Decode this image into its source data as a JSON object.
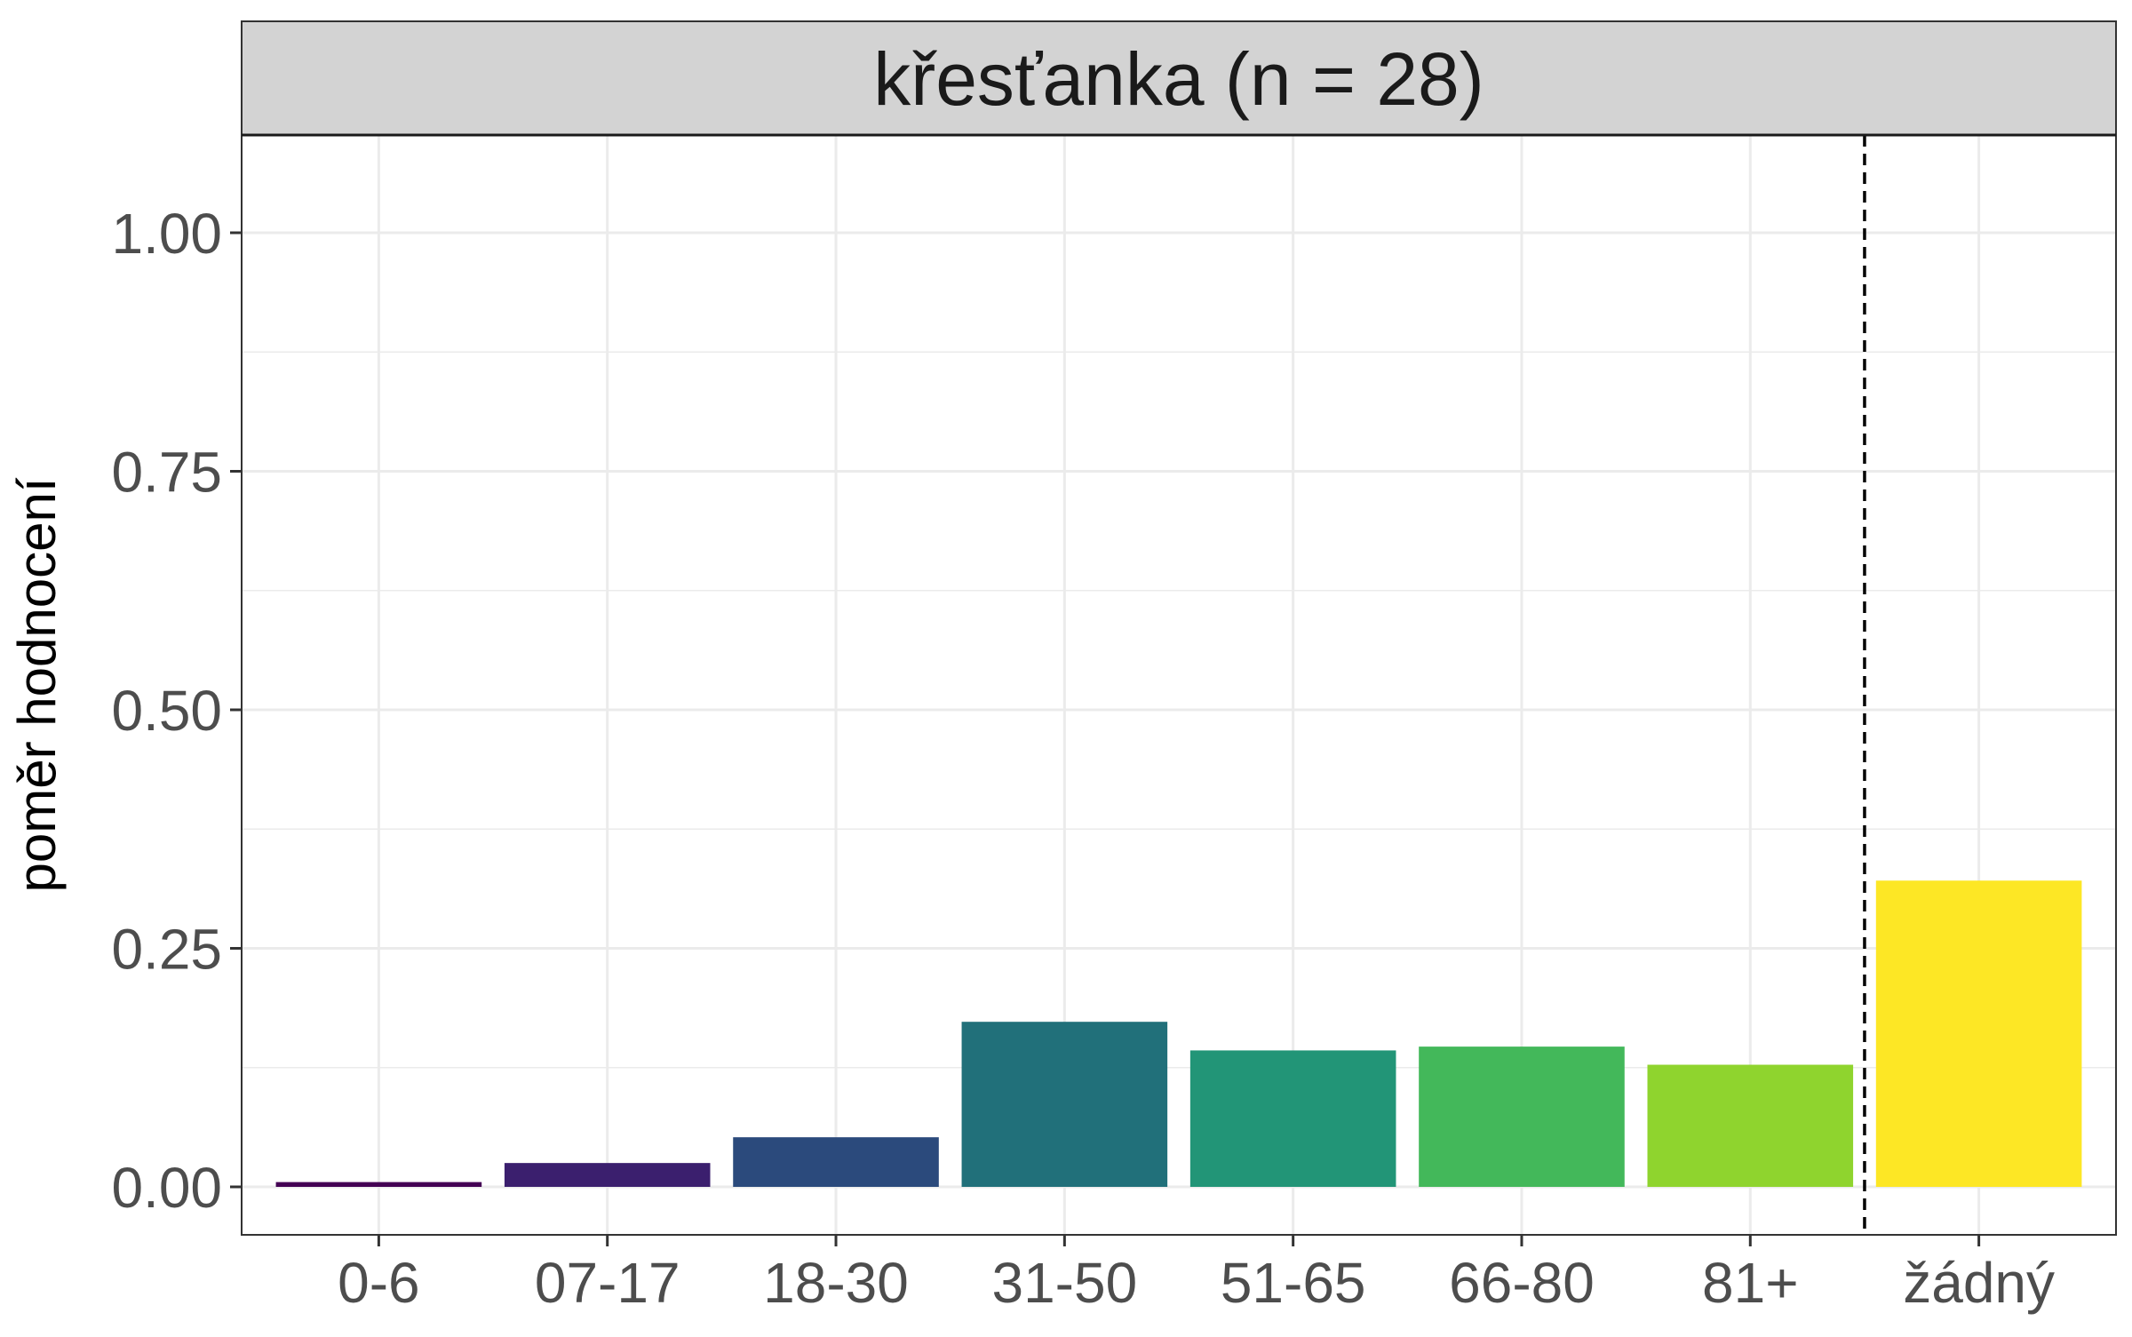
{
  "chart_data": {
    "type": "bar",
    "facet_title": "křesťanka (n = 28)",
    "ylabel": "poměr hodnocení",
    "xlabel": "",
    "categories": [
      "0-6",
      "07-17",
      "18-30",
      "31-50",
      "51-65",
      "66-80",
      "81+",
      "žádný"
    ],
    "values": [
      0.005,
      0.025,
      0.052,
      0.173,
      0.143,
      0.147,
      0.128,
      0.321
    ],
    "colors": [
      "#440154",
      "#3b1f6e",
      "#2b4a7c",
      "#21707a",
      "#229577",
      "#43b85a",
      "#8fd42e",
      "#fde725"
    ],
    "ylim": [
      -0.05,
      1.1
    ],
    "yticks": [
      0.0,
      0.25,
      0.5,
      0.75,
      1.0
    ],
    "ytick_labels": [
      "0.00",
      "0.25",
      "0.50",
      "0.75",
      "1.00"
    ],
    "reference_line": {
      "style": "dashed",
      "between": [
        "81+",
        "žádný"
      ]
    },
    "grid": true,
    "legend": "none",
    "strip_fill": "#d3d3d3"
  }
}
